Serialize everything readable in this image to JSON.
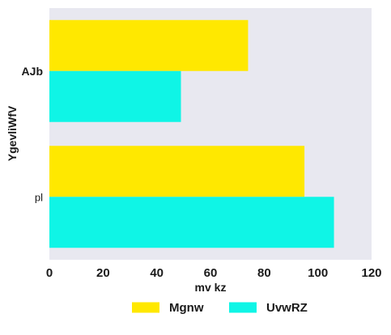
{
  "chart_data": {
    "type": "bar",
    "orientation": "horizontal",
    "categories": [
      "AJb",
      "pl"
    ],
    "series": [
      {
        "name": "Mgnw",
        "values": [
          74,
          95
        ],
        "color": "#ffe800"
      },
      {
        "name": "UvwRZ",
        "values": [
          49,
          106
        ],
        "color": "#0ff5e6"
      }
    ],
    "xlabel": "mv kz",
    "ylabel": "YgevliWfV",
    "xlim": [
      0,
      120
    ],
    "xticks": [
      "0",
      "20",
      "40",
      "60",
      "80",
      "100",
      "120"
    ],
    "grid": false,
    "plot_background": "#e8e8f0",
    "legend_position": "bottom"
  }
}
